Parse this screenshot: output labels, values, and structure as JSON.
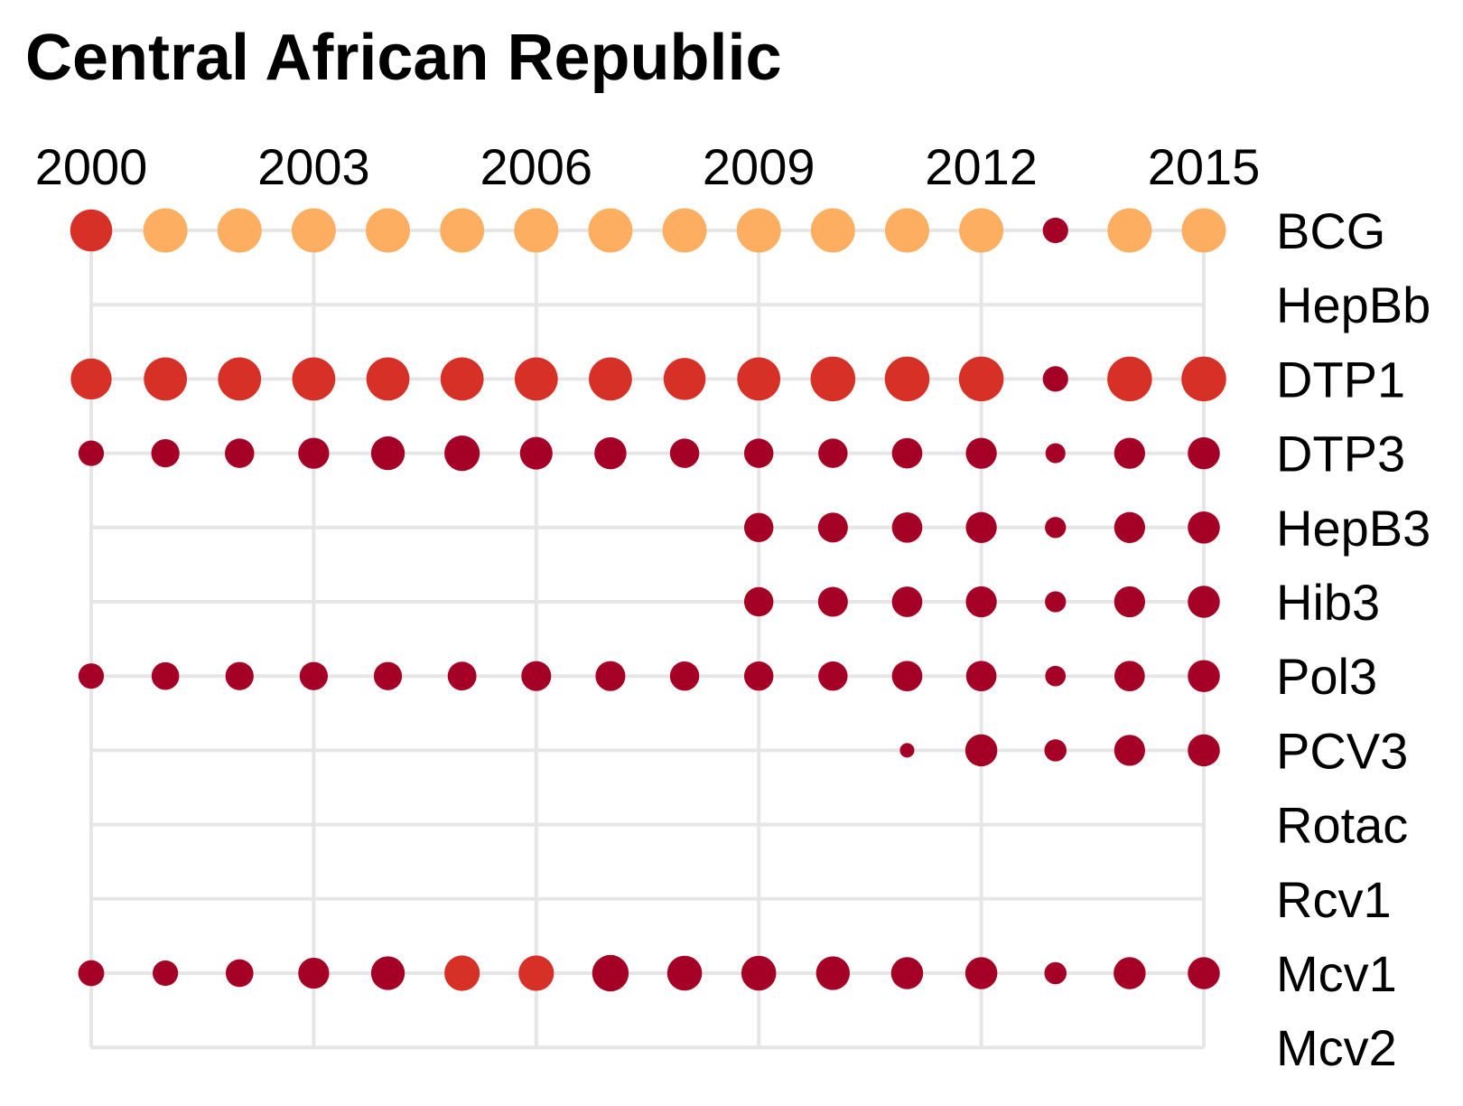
{
  "chart_data": {
    "type": "scatter",
    "title": "Central African Republic",
    "xlabel": "",
    "ylabel": "",
    "x": [
      2000,
      2001,
      2002,
      2003,
      2004,
      2005,
      2006,
      2007,
      2008,
      2009,
      2010,
      2011,
      2012,
      2013,
      2014,
      2015
    ],
    "x_tick_labels": [
      "2000",
      "2003",
      "2006",
      "2009",
      "2012",
      "2015"
    ],
    "x_ticks": [
      2000,
      2003,
      2006,
      2009,
      2012,
      2015
    ],
    "xlim": [
      2000,
      2015
    ],
    "rows": [
      "BCG",
      "HepBb",
      "DTP1",
      "DTP3",
      "HepB3",
      "Hib3",
      "Pol3",
      "PCV3",
      "Rotac",
      "Rcv1",
      "Mcv1",
      "Mcv2"
    ],
    "grid": true,
    "x_axis_position": "top",
    "y_axis_position": "right",
    "encoding": {
      "size": "coverage percent (estimated)",
      "color": "coverage class (estimated)"
    },
    "colors": {
      "low": "#a50026",
      "mid": "#d73027",
      "high": "#fdae61"
    },
    "series": [
      {
        "name": "BCG",
        "coverage": [
          70,
          74,
          74,
          74,
          74,
          74,
          74,
          74,
          74,
          74,
          74,
          74,
          74,
          40,
          74,
          74
        ],
        "color_class": [
          "mid",
          "high",
          "high",
          "high",
          "high",
          "high",
          "high",
          "high",
          "high",
          "high",
          "high",
          "high",
          "high",
          "low",
          "high",
          "high"
        ]
      },
      {
        "name": "HepBb",
        "coverage": [
          null,
          null,
          null,
          null,
          null,
          null,
          null,
          null,
          null,
          null,
          null,
          null,
          null,
          null,
          null,
          null
        ],
        "color_class": [
          null,
          null,
          null,
          null,
          null,
          null,
          null,
          null,
          null,
          null,
          null,
          null,
          null,
          null,
          null,
          null
        ]
      },
      {
        "name": "DTP1",
        "coverage": [
          68,
          72,
          72,
          72,
          72,
          72,
          72,
          72,
          70,
          72,
          75,
          75,
          75,
          40,
          75,
          75
        ],
        "color_class": [
          "mid",
          "mid",
          "mid",
          "mid",
          "mid",
          "mid",
          "mid",
          "mid",
          "mid",
          "mid",
          "mid",
          "mid",
          "mid",
          "low",
          "mid",
          "mid"
        ]
      },
      {
        "name": "DTP3",
        "coverage": [
          40,
          45,
          47,
          50,
          55,
          58,
          53,
          52,
          47,
          47,
          47,
          49,
          50,
          30,
          50,
          52
        ],
        "color_class": [
          "low",
          "low",
          "low",
          "low",
          "low",
          "low",
          "low",
          "low",
          "low",
          "low",
          "low",
          "low",
          "low",
          "low",
          "low",
          "low"
        ]
      },
      {
        "name": "HepB3",
        "coverage": [
          null,
          null,
          null,
          null,
          null,
          null,
          null,
          null,
          null,
          47,
          48,
          49,
          50,
          32,
          50,
          52
        ],
        "color_class": [
          null,
          null,
          null,
          null,
          null,
          null,
          null,
          null,
          null,
          "low",
          "low",
          "low",
          "low",
          "low",
          "low",
          "low"
        ]
      },
      {
        "name": "Hib3",
        "coverage": [
          null,
          null,
          null,
          null,
          null,
          null,
          null,
          null,
          null,
          47,
          48,
          49,
          50,
          32,
          50,
          52
        ],
        "color_class": [
          null,
          null,
          null,
          null,
          null,
          null,
          null,
          null,
          null,
          "low",
          "low",
          "low",
          "low",
          "low",
          "low",
          "low"
        ]
      },
      {
        "name": "Pol3",
        "coverage": [
          40,
          44,
          45,
          45,
          45,
          46,
          48,
          48,
          47,
          47,
          47,
          49,
          49,
          31,
          49,
          52
        ],
        "color_class": [
          "low",
          "low",
          "low",
          "low",
          "low",
          "low",
          "low",
          "low",
          "low",
          "low",
          "low",
          "low",
          "low",
          "low",
          "low",
          "low"
        ]
      },
      {
        "name": "PCV3",
        "coverage": [
          null,
          null,
          null,
          null,
          null,
          null,
          null,
          null,
          null,
          null,
          null,
          20,
          52,
          34,
          50,
          52
        ],
        "color_class": [
          null,
          null,
          null,
          null,
          null,
          null,
          null,
          null,
          null,
          null,
          null,
          "low",
          "low",
          "low",
          "low",
          "low"
        ]
      },
      {
        "name": "Rotac",
        "coverage": [
          null,
          null,
          null,
          null,
          null,
          null,
          null,
          null,
          null,
          null,
          null,
          null,
          null,
          null,
          null,
          null
        ],
        "color_class": [
          null,
          null,
          null,
          null,
          null,
          null,
          null,
          null,
          null,
          null,
          null,
          null,
          null,
          null,
          null,
          null
        ]
      },
      {
        "name": "Rcv1",
        "coverage": [
          null,
          null,
          null,
          null,
          null,
          null,
          null,
          null,
          null,
          null,
          null,
          null,
          null,
          null,
          null,
          null
        ],
        "color_class": [
          null,
          null,
          null,
          null,
          null,
          null,
          null,
          null,
          null,
          null,
          null,
          null,
          null,
          null,
          null,
          null
        ]
      },
      {
        "name": "Mcv1",
        "coverage": [
          41,
          40,
          44,
          50,
          55,
          58,
          58,
          60,
          57,
          57,
          55,
          52,
          52,
          34,
          52,
          52
        ],
        "color_class": [
          "low",
          "low",
          "low",
          "low",
          "low",
          "mid",
          "mid",
          "low",
          "low",
          "low",
          "low",
          "low",
          "low",
          "low",
          "low",
          "low"
        ]
      },
      {
        "name": "Mcv2",
        "coverage": [
          null,
          null,
          null,
          null,
          null,
          null,
          null,
          null,
          null,
          null,
          null,
          null,
          null,
          null,
          null,
          null
        ],
        "color_class": [
          null,
          null,
          null,
          null,
          null,
          null,
          null,
          null,
          null,
          null,
          null,
          null,
          null,
          null,
          null,
          null
        ]
      }
    ]
  }
}
